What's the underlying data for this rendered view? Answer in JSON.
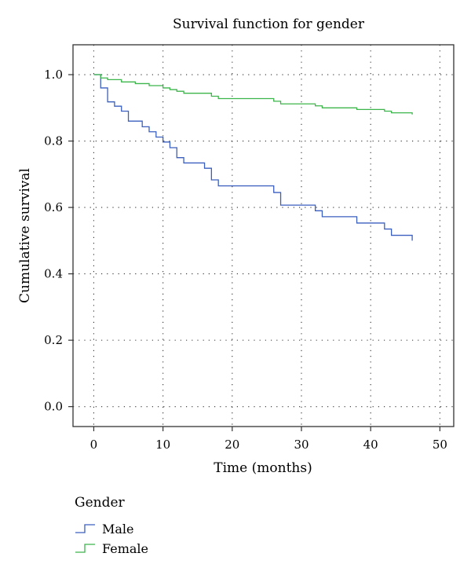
{
  "chart_data": {
    "type": "line",
    "step": true,
    "title": "Survival function for gender",
    "xlabel": "Time (months)",
    "ylabel": "Cumulative survival",
    "xlim": [
      -3,
      52
    ],
    "ylim": [
      -0.06,
      1.09
    ],
    "xticks": [
      0,
      10,
      20,
      30,
      40,
      50
    ],
    "yticks": [
      0.0,
      0.2,
      0.4,
      0.6,
      0.8,
      1.0
    ],
    "xtick_labels": [
      "0",
      "10",
      "20",
      "30",
      "40",
      "50"
    ],
    "ytick_labels": [
      "0.0",
      "0.2",
      "0.4",
      "0.6",
      "0.8",
      "1.0"
    ],
    "grid": "dotted",
    "legend": {
      "title": "Gender",
      "position": "bottom-left"
    },
    "series": [
      {
        "name": "Male",
        "color": "#3a5fbf",
        "points": [
          [
            0,
            1.0
          ],
          [
            1,
            0.96
          ],
          [
            2,
            0.918
          ],
          [
            3,
            0.905
          ],
          [
            4,
            0.89
          ],
          [
            5,
            0.86
          ],
          [
            7,
            0.843
          ],
          [
            8,
            0.828
          ],
          [
            9,
            0.812
          ],
          [
            10,
            0.797
          ],
          [
            11,
            0.78
          ],
          [
            12,
            0.75
          ],
          [
            13,
            0.734
          ],
          [
            16,
            0.718
          ],
          [
            17,
            0.683
          ],
          [
            18,
            0.665
          ],
          [
            26,
            0.645
          ],
          [
            27,
            0.607
          ],
          [
            32,
            0.59
          ],
          [
            33,
            0.572
          ],
          [
            38,
            0.553
          ],
          [
            42,
            0.535
          ],
          [
            43,
            0.516
          ],
          [
            46,
            0.5
          ]
        ]
      },
      {
        "name": "Female",
        "color": "#3cb54a",
        "points": [
          [
            0,
            1.0
          ],
          [
            1,
            0.99
          ],
          [
            2,
            0.985
          ],
          [
            4,
            0.978
          ],
          [
            6,
            0.973
          ],
          [
            8,
            0.967
          ],
          [
            10,
            0.96
          ],
          [
            11,
            0.955
          ],
          [
            12,
            0.95
          ],
          [
            13,
            0.944
          ],
          [
            17,
            0.935
          ],
          [
            18,
            0.928
          ],
          [
            26,
            0.92
          ],
          [
            27,
            0.912
          ],
          [
            32,
            0.906
          ],
          [
            33,
            0.9
          ],
          [
            38,
            0.895
          ],
          [
            42,
            0.89
          ],
          [
            43,
            0.885
          ],
          [
            46,
            0.88
          ]
        ]
      }
    ]
  }
}
